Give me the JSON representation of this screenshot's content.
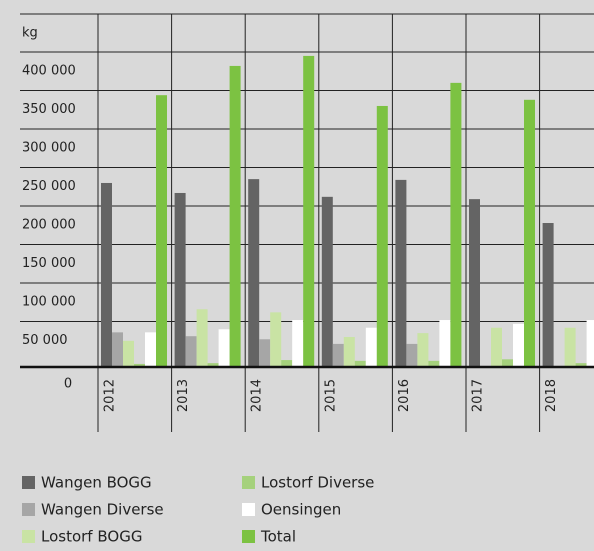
{
  "chart_data": {
    "type": "bar",
    "ylabel": "kg",
    "categories": [
      "2012",
      "2013",
      "2014",
      "2015",
      "2016",
      "2017",
      "2018"
    ],
    "series": [
      {
        "name": "Wangen BOGG",
        "color": "#646464",
        "values": [
          239000,
          226000,
          244000,
          221000,
          243000,
          218000,
          187000
        ]
      },
      {
        "name": "Wangen Diverse",
        "color": "#a6a6a6",
        "values": [
          45000,
          40000,
          36000,
          30000,
          30000,
          null,
          null
        ]
      },
      {
        "name": "Lostorf BOGG",
        "color": "#c9e3a4",
        "values": [
          34000,
          75000,
          71000,
          39000,
          44000,
          51000,
          51000
        ]
      },
      {
        "name": "Lostorf Diverse",
        "color": "#a5d17c",
        "values": [
          4000,
          5000,
          9000,
          8000,
          8000,
          10000,
          5000
        ]
      },
      {
        "name": "Oensingen",
        "color": "#ffffff",
        "values": [
          45000,
          49000,
          61000,
          51000,
          61000,
          56000,
          61000
        ]
      },
      {
        "name": "Total",
        "color": "#7cc242",
        "values": [
          353000,
          391000,
          404000,
          339000,
          369000,
          347000,
          null
        ]
      }
    ],
    "ylim": [
      0,
      400000
    ],
    "yticks": [
      0,
      {
        "value": 50000,
        "label": "50 000"
      },
      {
        "value": 100000,
        "label": "100 000"
      },
      {
        "value": 150000,
        "label": "150 000"
      },
      {
        "value": 200000,
        "label": "200 000"
      },
      {
        "value": 250000,
        "label": "250 000"
      },
      {
        "value": 300000,
        "label": "300 000"
      },
      {
        "value": 350000,
        "label": "350 000"
      },
      {
        "value": 400000,
        "label": "400 000"
      }
    ]
  }
}
